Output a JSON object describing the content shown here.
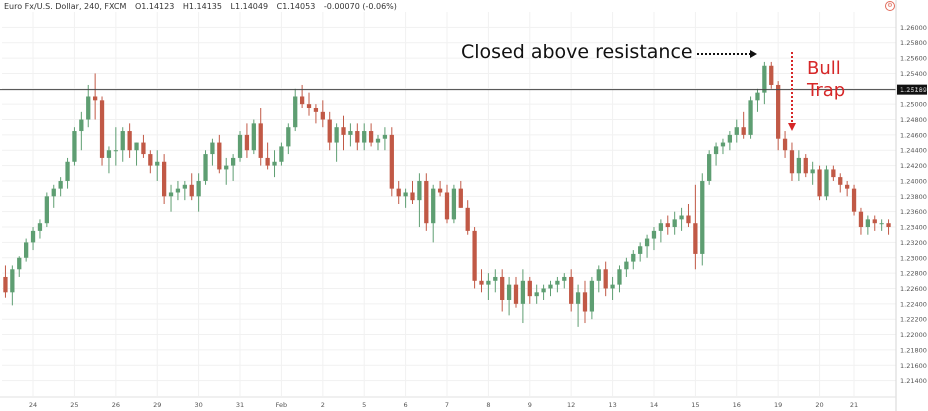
{
  "header": {
    "symbol": "Euro Fx/U.S. Dollar, 240, FXCM",
    "open": "O1.14123",
    "high": "H1.14135",
    "low": "L1.14049",
    "close": "C1.14053",
    "change": "-0.00070 (-0.06%)"
  },
  "annotations": {
    "closed_above": "Closed above resistance",
    "bull": "Bull",
    "trap": "Trap"
  },
  "chart_data": {
    "type": "candlestick",
    "title": "",
    "xlabel": "",
    "ylabel": "",
    "ylim": [
      1.212,
      1.262
    ],
    "resistance_level": 1.25189,
    "resistance_label": "1.25189",
    "colors": {
      "up": "#5e9e72",
      "down": "#c15946",
      "resistance": "#444444",
      "annotation_red": "#d62728"
    },
    "y_ticks": [
      "1.26000",
      "1.25800",
      "1.25600",
      "1.25400",
      "1.25200",
      "1.25000",
      "1.24800",
      "1.24600",
      "1.24400",
      "1.24200",
      "1.24000",
      "1.23800",
      "1.23600",
      "1.23400",
      "1.23200",
      "1.23000",
      "1.22800",
      "1.22600",
      "1.22400",
      "1.22200",
      "1.22000",
      "1.21800",
      "1.21600",
      "1.21400"
    ],
    "x_ticks": [
      {
        "label": "24",
        "bar": 4
      },
      {
        "label": "25",
        "bar": 10
      },
      {
        "label": "26",
        "bar": 16
      },
      {
        "label": "29",
        "bar": 22
      },
      {
        "label": "30",
        "bar": 28
      },
      {
        "label": "31",
        "bar": 34
      },
      {
        "label": "Feb",
        "bar": 40
      },
      {
        "label": "2",
        "bar": 46
      },
      {
        "label": "5",
        "bar": 52
      },
      {
        "label": "6",
        "bar": 58
      },
      {
        "label": "7",
        "bar": 64
      },
      {
        "label": "8",
        "bar": 70
      },
      {
        "label": "9",
        "bar": 76
      },
      {
        "label": "12",
        "bar": 82
      },
      {
        "label": "13",
        "bar": 88
      },
      {
        "label": "14",
        "bar": 94
      },
      {
        "label": "15",
        "bar": 100
      },
      {
        "label": "16",
        "bar": 106
      },
      {
        "label": "19",
        "bar": 112
      },
      {
        "label": "20",
        "bar": 118
      },
      {
        "label": "21",
        "bar": 123
      }
    ],
    "candles": [
      {
        "o": 1.2275,
        "h": 1.229,
        "l": 1.2248,
        "c": 1.2255
      },
      {
        "o": 1.2255,
        "h": 1.229,
        "l": 1.2238,
        "c": 1.2285
      },
      {
        "o": 1.2285,
        "h": 1.2302,
        "l": 1.2275,
        "c": 1.23
      },
      {
        "o": 1.23,
        "h": 1.2325,
        "l": 1.2295,
        "c": 1.232
      },
      {
        "o": 1.232,
        "h": 1.234,
        "l": 1.231,
        "c": 1.2335
      },
      {
        "o": 1.2335,
        "h": 1.235,
        "l": 1.2325,
        "c": 1.2345
      },
      {
        "o": 1.2345,
        "h": 1.2385,
        "l": 1.234,
        "c": 1.238
      },
      {
        "o": 1.238,
        "h": 1.2395,
        "l": 1.2365,
        "c": 1.239
      },
      {
        "o": 1.239,
        "h": 1.2405,
        "l": 1.238,
        "c": 1.24
      },
      {
        "o": 1.24,
        "h": 1.243,
        "l": 1.239,
        "c": 1.2425
      },
      {
        "o": 1.2425,
        "h": 1.247,
        "l": 1.242,
        "c": 1.2465
      },
      {
        "o": 1.2465,
        "h": 1.249,
        "l": 1.244,
        "c": 1.248
      },
      {
        "o": 1.248,
        "h": 1.2525,
        "l": 1.247,
        "c": 1.251
      },
      {
        "o": 1.251,
        "h": 1.254,
        "l": 1.248,
        "c": 1.2505
      },
      {
        "o": 1.2505,
        "h": 1.251,
        "l": 1.242,
        "c": 1.243
      },
      {
        "o": 1.243,
        "h": 1.2445,
        "l": 1.241,
        "c": 1.244
      },
      {
        "o": 1.244,
        "h": 1.247,
        "l": 1.242,
        "c": 1.244
      },
      {
        "o": 1.244,
        "h": 1.247,
        "l": 1.2425,
        "c": 1.2465
      },
      {
        "o": 1.2465,
        "h": 1.2475,
        "l": 1.243,
        "c": 1.244
      },
      {
        "o": 1.244,
        "h": 1.245,
        "l": 1.242,
        "c": 1.245
      },
      {
        "o": 1.245,
        "h": 1.246,
        "l": 1.243,
        "c": 1.2435
      },
      {
        "o": 1.2435,
        "h": 1.244,
        "l": 1.241,
        "c": 1.242
      },
      {
        "o": 1.242,
        "h": 1.244,
        "l": 1.24,
        "c": 1.2425
      },
      {
        "o": 1.2425,
        "h": 1.2435,
        "l": 1.237,
        "c": 1.238
      },
      {
        "o": 1.238,
        "h": 1.2395,
        "l": 1.236,
        "c": 1.2385
      },
      {
        "o": 1.2385,
        "h": 1.24,
        "l": 1.2375,
        "c": 1.239
      },
      {
        "o": 1.239,
        "h": 1.24,
        "l": 1.2375,
        "c": 1.2395
      },
      {
        "o": 1.2395,
        "h": 1.241,
        "l": 1.2375,
        "c": 1.238
      },
      {
        "o": 1.238,
        "h": 1.241,
        "l": 1.236,
        "c": 1.24
      },
      {
        "o": 1.24,
        "h": 1.244,
        "l": 1.2395,
        "c": 1.2435
      },
      {
        "o": 1.2435,
        "h": 1.2455,
        "l": 1.242,
        "c": 1.245
      },
      {
        "o": 1.245,
        "h": 1.246,
        "l": 1.241,
        "c": 1.2415
      },
      {
        "o": 1.2415,
        "h": 1.243,
        "l": 1.2395,
        "c": 1.242
      },
      {
        "o": 1.242,
        "h": 1.2435,
        "l": 1.24,
        "c": 1.243
      },
      {
        "o": 1.243,
        "h": 1.2465,
        "l": 1.2425,
        "c": 1.246
      },
      {
        "o": 1.246,
        "h": 1.2475,
        "l": 1.243,
        "c": 1.244
      },
      {
        "o": 1.244,
        "h": 1.248,
        "l": 1.2435,
        "c": 1.2475
      },
      {
        "o": 1.2475,
        "h": 1.2495,
        "l": 1.242,
        "c": 1.243
      },
      {
        "o": 1.243,
        "h": 1.245,
        "l": 1.2415,
        "c": 1.242
      },
      {
        "o": 1.242,
        "h": 1.244,
        "l": 1.2405,
        "c": 1.2425
      },
      {
        "o": 1.2425,
        "h": 1.245,
        "l": 1.242,
        "c": 1.2445
      },
      {
        "o": 1.2445,
        "h": 1.2475,
        "l": 1.2435,
        "c": 1.247
      },
      {
        "o": 1.247,
        "h": 1.252,
        "l": 1.2465,
        "c": 1.251
      },
      {
        "o": 1.251,
        "h": 1.2525,
        "l": 1.2495,
        "c": 1.25
      },
      {
        "o": 1.25,
        "h": 1.2515,
        "l": 1.2485,
        "c": 1.2495
      },
      {
        "o": 1.2495,
        "h": 1.25,
        "l": 1.2475,
        "c": 1.249
      },
      {
        "o": 1.249,
        "h": 1.2505,
        "l": 1.247,
        "c": 1.248
      },
      {
        "o": 1.248,
        "h": 1.249,
        "l": 1.244,
        "c": 1.245
      },
      {
        "o": 1.245,
        "h": 1.2475,
        "l": 1.2425,
        "c": 1.247
      },
      {
        "o": 1.247,
        "h": 1.2485,
        "l": 1.244,
        "c": 1.246
      },
      {
        "o": 1.246,
        "h": 1.2475,
        "l": 1.2445,
        "c": 1.2465
      },
      {
        "o": 1.2465,
        "h": 1.2475,
        "l": 1.244,
        "c": 1.245
      },
      {
        "o": 1.245,
        "h": 1.2475,
        "l": 1.244,
        "c": 1.2465
      },
      {
        "o": 1.2465,
        "h": 1.2475,
        "l": 1.2445,
        "c": 1.245
      },
      {
        "o": 1.245,
        "h": 1.246,
        "l": 1.244,
        "c": 1.2455
      },
      {
        "o": 1.2455,
        "h": 1.247,
        "l": 1.244,
        "c": 1.246
      },
      {
        "o": 1.246,
        "h": 1.247,
        "l": 1.238,
        "c": 1.239
      },
      {
        "o": 1.239,
        "h": 1.24,
        "l": 1.237,
        "c": 1.238
      },
      {
        "o": 1.238,
        "h": 1.239,
        "l": 1.2365,
        "c": 1.2385
      },
      {
        "o": 1.2385,
        "h": 1.24,
        "l": 1.237,
        "c": 1.2375
      },
      {
        "o": 1.2375,
        "h": 1.241,
        "l": 1.234,
        "c": 1.24
      },
      {
        "o": 1.24,
        "h": 1.241,
        "l": 1.2335,
        "c": 1.2345
      },
      {
        "o": 1.2345,
        "h": 1.2395,
        "l": 1.232,
        "c": 1.239
      },
      {
        "o": 1.239,
        "h": 1.24,
        "l": 1.238,
        "c": 1.2385
      },
      {
        "o": 1.2385,
        "h": 1.2395,
        "l": 1.2345,
        "c": 1.235
      },
      {
        "o": 1.235,
        "h": 1.2395,
        "l": 1.2345,
        "c": 1.239
      },
      {
        "o": 1.239,
        "h": 1.24,
        "l": 1.2365,
        "c": 1.2365
      },
      {
        "o": 1.2365,
        "h": 1.2375,
        "l": 1.233,
        "c": 1.2335
      },
      {
        "o": 1.2335,
        "h": 1.234,
        "l": 1.226,
        "c": 1.227
      },
      {
        "o": 1.227,
        "h": 1.2285,
        "l": 1.2255,
        "c": 1.2265
      },
      {
        "o": 1.2265,
        "h": 1.228,
        "l": 1.2245,
        "c": 1.227
      },
      {
        "o": 1.227,
        "h": 1.2285,
        "l": 1.2255,
        "c": 1.2275
      },
      {
        "o": 1.2275,
        "h": 1.2285,
        "l": 1.223,
        "c": 1.2245
      },
      {
        "o": 1.2245,
        "h": 1.2275,
        "l": 1.2225,
        "c": 1.2265
      },
      {
        "o": 1.2265,
        "h": 1.2275,
        "l": 1.2235,
        "c": 1.224
      },
      {
        "o": 1.224,
        "h": 1.2285,
        "l": 1.2215,
        "c": 1.227
      },
      {
        "o": 1.227,
        "h": 1.2275,
        "l": 1.224,
        "c": 1.225
      },
      {
        "o": 1.225,
        "h": 1.2265,
        "l": 1.224,
        "c": 1.2255
      },
      {
        "o": 1.2255,
        "h": 1.2265,
        "l": 1.2245,
        "c": 1.226
      },
      {
        "o": 1.226,
        "h": 1.227,
        "l": 1.225,
        "c": 1.2265
      },
      {
        "o": 1.2265,
        "h": 1.2275,
        "l": 1.2255,
        "c": 1.227
      },
      {
        "o": 1.227,
        "h": 1.228,
        "l": 1.226,
        "c": 1.2275
      },
      {
        "o": 1.2275,
        "h": 1.2285,
        "l": 1.223,
        "c": 1.224
      },
      {
        "o": 1.224,
        "h": 1.2265,
        "l": 1.221,
        "c": 1.2255
      },
      {
        "o": 1.2255,
        "h": 1.227,
        "l": 1.2215,
        "c": 1.223
      },
      {
        "o": 1.223,
        "h": 1.2275,
        "l": 1.222,
        "c": 1.227
      },
      {
        "o": 1.227,
        "h": 1.229,
        "l": 1.2255,
        "c": 1.2285
      },
      {
        "o": 1.2285,
        "h": 1.2295,
        "l": 1.225,
        "c": 1.226
      },
      {
        "o": 1.226,
        "h": 1.2275,
        "l": 1.2245,
        "c": 1.2265
      },
      {
        "o": 1.2265,
        "h": 1.229,
        "l": 1.2255,
        "c": 1.2285
      },
      {
        "o": 1.2285,
        "h": 1.23,
        "l": 1.2275,
        "c": 1.2295
      },
      {
        "o": 1.2295,
        "h": 1.231,
        "l": 1.2285,
        "c": 1.2305
      },
      {
        "o": 1.2305,
        "h": 1.232,
        "l": 1.2295,
        "c": 1.2315
      },
      {
        "o": 1.2315,
        "h": 1.233,
        "l": 1.23,
        "c": 1.2325
      },
      {
        "o": 1.2325,
        "h": 1.234,
        "l": 1.231,
        "c": 1.2335
      },
      {
        "o": 1.2335,
        "h": 1.235,
        "l": 1.232,
        "c": 1.2345
      },
      {
        "o": 1.2345,
        "h": 1.2355,
        "l": 1.233,
        "c": 1.234
      },
      {
        "o": 1.234,
        "h": 1.236,
        "l": 1.233,
        "c": 1.235
      },
      {
        "o": 1.235,
        "h": 1.2365,
        "l": 1.2335,
        "c": 1.2355
      },
      {
        "o": 1.2355,
        "h": 1.237,
        "l": 1.234,
        "c": 1.2345
      },
      {
        "o": 1.2345,
        "h": 1.2395,
        "l": 1.2285,
        "c": 1.2305
      },
      {
        "o": 1.2305,
        "h": 1.241,
        "l": 1.229,
        "c": 1.24
      },
      {
        "o": 1.24,
        "h": 1.244,
        "l": 1.2395,
        "c": 1.2435
      },
      {
        "o": 1.2435,
        "h": 1.245,
        "l": 1.242,
        "c": 1.2445
      },
      {
        "o": 1.2445,
        "h": 1.2455,
        "l": 1.2435,
        "c": 1.245
      },
      {
        "o": 1.245,
        "h": 1.2465,
        "l": 1.244,
        "c": 1.246
      },
      {
        "o": 1.246,
        "h": 1.248,
        "l": 1.245,
        "c": 1.247
      },
      {
        "o": 1.247,
        "h": 1.249,
        "l": 1.2455,
        "c": 1.246
      },
      {
        "o": 1.246,
        "h": 1.251,
        "l": 1.2455,
        "c": 1.2505
      },
      {
        "o": 1.2505,
        "h": 1.252,
        "l": 1.249,
        "c": 1.2515
      },
      {
        "o": 1.2515,
        "h": 1.2555,
        "l": 1.25,
        "c": 1.255
      },
      {
        "o": 1.255,
        "h": 1.2555,
        "l": 1.252,
        "c": 1.2525
      },
      {
        "o": 1.2525,
        "h": 1.253,
        "l": 1.244,
        "c": 1.2455
      },
      {
        "o": 1.2455,
        "h": 1.2465,
        "l": 1.243,
        "c": 1.244
      },
      {
        "o": 1.244,
        "h": 1.245,
        "l": 1.24,
        "c": 1.241
      },
      {
        "o": 1.241,
        "h": 1.244,
        "l": 1.24,
        "c": 1.243
      },
      {
        "o": 1.243,
        "h": 1.2435,
        "l": 1.2405,
        "c": 1.241
      },
      {
        "o": 1.241,
        "h": 1.2425,
        "l": 1.2395,
        "c": 1.2415
      },
      {
        "o": 1.2415,
        "h": 1.242,
        "l": 1.2375,
        "c": 1.238
      },
      {
        "o": 1.238,
        "h": 1.242,
        "l": 1.2375,
        "c": 1.2415
      },
      {
        "o": 1.2415,
        "h": 1.242,
        "l": 1.24,
        "c": 1.2405
      },
      {
        "o": 1.2405,
        "h": 1.241,
        "l": 1.2385,
        "c": 1.2395
      },
      {
        "o": 1.2395,
        "h": 1.24,
        "l": 1.238,
        "c": 1.239
      },
      {
        "o": 1.239,
        "h": 1.2395,
        "l": 1.2355,
        "c": 1.236
      },
      {
        "o": 1.236,
        "h": 1.2365,
        "l": 1.233,
        "c": 1.234
      },
      {
        "o": 1.234,
        "h": 1.2355,
        "l": 1.233,
        "c": 1.235
      },
      {
        "o": 1.235,
        "h": 1.2355,
        "l": 1.2335,
        "c": 1.2345
      },
      {
        "o": 1.2345,
        "h": 1.235,
        "l": 1.2335,
        "c": 1.2345
      },
      {
        "o": 1.2345,
        "h": 1.235,
        "l": 1.233,
        "c": 1.234
      }
    ]
  }
}
